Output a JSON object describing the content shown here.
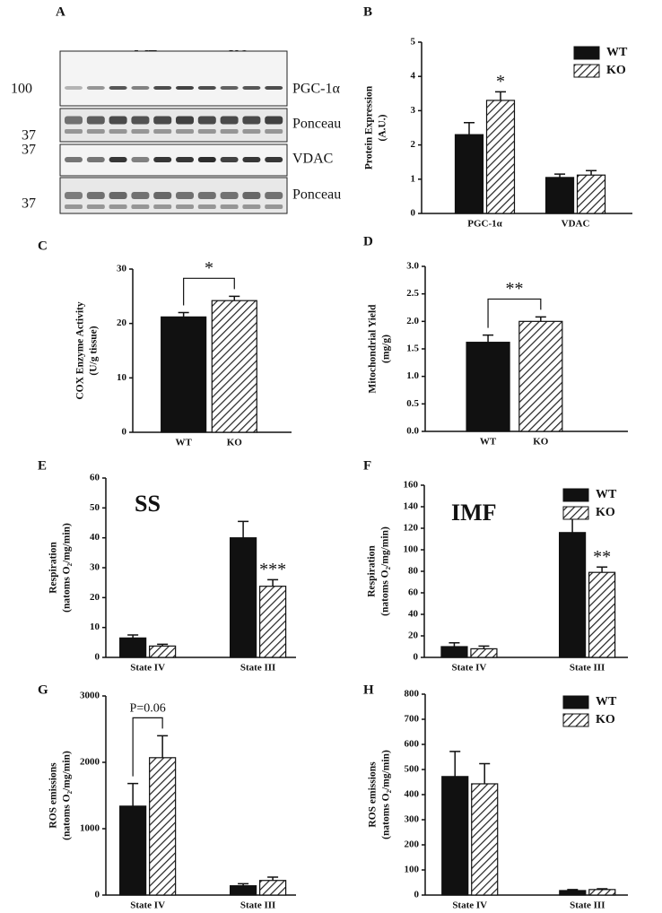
{
  "blot": {
    "panel": "A",
    "lanes": [
      "S",
      "WT",
      "KO"
    ],
    "markers": [
      100,
      37,
      37,
      37
    ],
    "rows": [
      "PGC-1α",
      "Ponceau",
      "VDAC",
      "Ponceau"
    ]
  },
  "chart_data": [
    {
      "type": "bar",
      "panel": "B",
      "ylabel": [
        "Protein Expression",
        "(A.U.)"
      ],
      "categories": [
        "PGC-1α",
        "VDAC"
      ],
      "series": [
        {
          "name": "WT",
          "color": "#111111",
          "fill": "solid",
          "values": [
            2.3,
            1.05
          ],
          "errors": [
            0.35,
            0.1
          ]
        },
        {
          "name": "KO",
          "color": "#111111",
          "fill": "hatched",
          "values": [
            3.3,
            1.12
          ],
          "errors": [
            0.25,
            0.13
          ]
        }
      ],
      "ylim": [
        0,
        5
      ],
      "yticks": [
        0,
        1,
        2,
        3,
        4,
        5
      ],
      "legend": "top-right",
      "annotations": [
        {
          "text": "*",
          "over": [
            1,
            0
          ]
        }
      ]
    },
    {
      "type": "bar",
      "panel": "C",
      "ylabel": [
        "COX Enzyme Activity",
        "(U/g tissue)"
      ],
      "categories": [
        "WT",
        "KO"
      ],
      "values": [
        21.2,
        24.2
      ],
      "errors": [
        0.8,
        0.8
      ],
      "fills": [
        "solid",
        "hatched"
      ],
      "color": "#111111",
      "ylim": [
        0,
        30
      ],
      "yticks": [
        0,
        10,
        20,
        30
      ],
      "annotations": [
        {
          "text": "*",
          "bracket": [
            0,
            1
          ]
        }
      ]
    },
    {
      "type": "bar",
      "panel": "D",
      "ylabel": [
        "Mitochondrial Yield",
        "(mg/g)"
      ],
      "categories": [
        "WT",
        "KO"
      ],
      "values": [
        1.62,
        2.0
      ],
      "errors": [
        0.13,
        0.08
      ],
      "fills": [
        "solid",
        "hatched"
      ],
      "color": "#111111",
      "ylim": [
        0,
        3
      ],
      "yticks": [
        {
          "value": 0,
          "label": "0.0"
        },
        0.5,
        {
          "value": 1,
          "label": "1.0"
        },
        1.5,
        {
          "value": 2,
          "label": "2.0"
        },
        2.5,
        {
          "value": 3,
          "label": "3.0"
        }
      ],
      "annotations": [
        {
          "text": "**",
          "bracket": [
            0,
            1
          ]
        }
      ]
    },
    {
      "type": "bar",
      "panel": "E",
      "title": "SS",
      "ylabel": [
        "Respiration",
        "(natoms O₂/mg/min)"
      ],
      "categories": [
        "State IV",
        "State III"
      ],
      "series": [
        {
          "name": "WT",
          "color": "#111111",
          "fill": "solid",
          "values": [
            6.5,
            40
          ],
          "errors": [
            1,
            5.5
          ]
        },
        {
          "name": "KO",
          "color": "#111111",
          "fill": "hatched",
          "values": [
            3.8,
            23.8
          ],
          "errors": [
            0.6,
            2.2
          ]
        }
      ],
      "ylim": [
        0,
        60
      ],
      "yticks": [
        0,
        10,
        20,
        30,
        40,
        50,
        60
      ],
      "annotations": [
        {
          "text": "***",
          "over": [
            1,
            1
          ]
        }
      ]
    },
    {
      "type": "bar",
      "panel": "F",
      "title": "IMF",
      "ylabel": [
        "Respiration",
        "(natoms O₂/mg/min)"
      ],
      "categories": [
        "State IV",
        "State III"
      ],
      "series": [
        {
          "name": "WT",
          "color": "#111111",
          "fill": "solid",
          "values": [
            10,
            116
          ],
          "errors": [
            3.5,
            13
          ]
        },
        {
          "name": "KO",
          "color": "#111111",
          "fill": "hatched",
          "values": [
            8,
            79
          ],
          "errors": [
            2.5,
            5
          ]
        }
      ],
      "ylim": [
        0,
        160
      ],
      "yticks": [
        0,
        20,
        40,
        60,
        80,
        100,
        120,
        140,
        160
      ],
      "legend": "top-right",
      "annotations": [
        {
          "text": "**",
          "over": [
            1,
            1
          ]
        }
      ]
    },
    {
      "type": "bar",
      "panel": "G",
      "ylabel": [
        "ROS emissions",
        "(natoms O₂/mg/min)"
      ],
      "categories": [
        "State IV",
        "State III"
      ],
      "series": [
        {
          "name": "WT",
          "color": "#111111",
          "fill": "solid",
          "values": [
            1340,
            140
          ],
          "errors": [
            340,
            30
          ]
        },
        {
          "name": "KO",
          "color": "#111111",
          "fill": "hatched",
          "values": [
            2070,
            220
          ],
          "errors": [
            330,
            50
          ]
        }
      ],
      "ylim": [
        0,
        3000
      ],
      "yticks": [
        0,
        1000,
        2000,
        3000
      ],
      "annotations": [
        {
          "text": "P=0.06",
          "bracket": [
            0,
            1
          ],
          "category": 0
        }
      ]
    },
    {
      "type": "bar",
      "panel": "H",
      "ylabel": [
        "ROS emissions",
        "(natoms O₂/mg/min)"
      ],
      "categories": [
        "State IV",
        "State III"
      ],
      "series": [
        {
          "name": "WT",
          "color": "#111111",
          "fill": "solid",
          "values": [
            472,
            18
          ],
          "errors": [
            100,
            4
          ]
        },
        {
          "name": "KO",
          "color": "#111111",
          "fill": "hatched",
          "values": [
            443,
            22
          ],
          "errors": [
            80,
            3
          ]
        }
      ],
      "ylim": [
        0,
        800
      ],
      "yticks": [
        0,
        100,
        200,
        300,
        400,
        500,
        600,
        700,
        800
      ],
      "legend": "top-right"
    }
  ]
}
